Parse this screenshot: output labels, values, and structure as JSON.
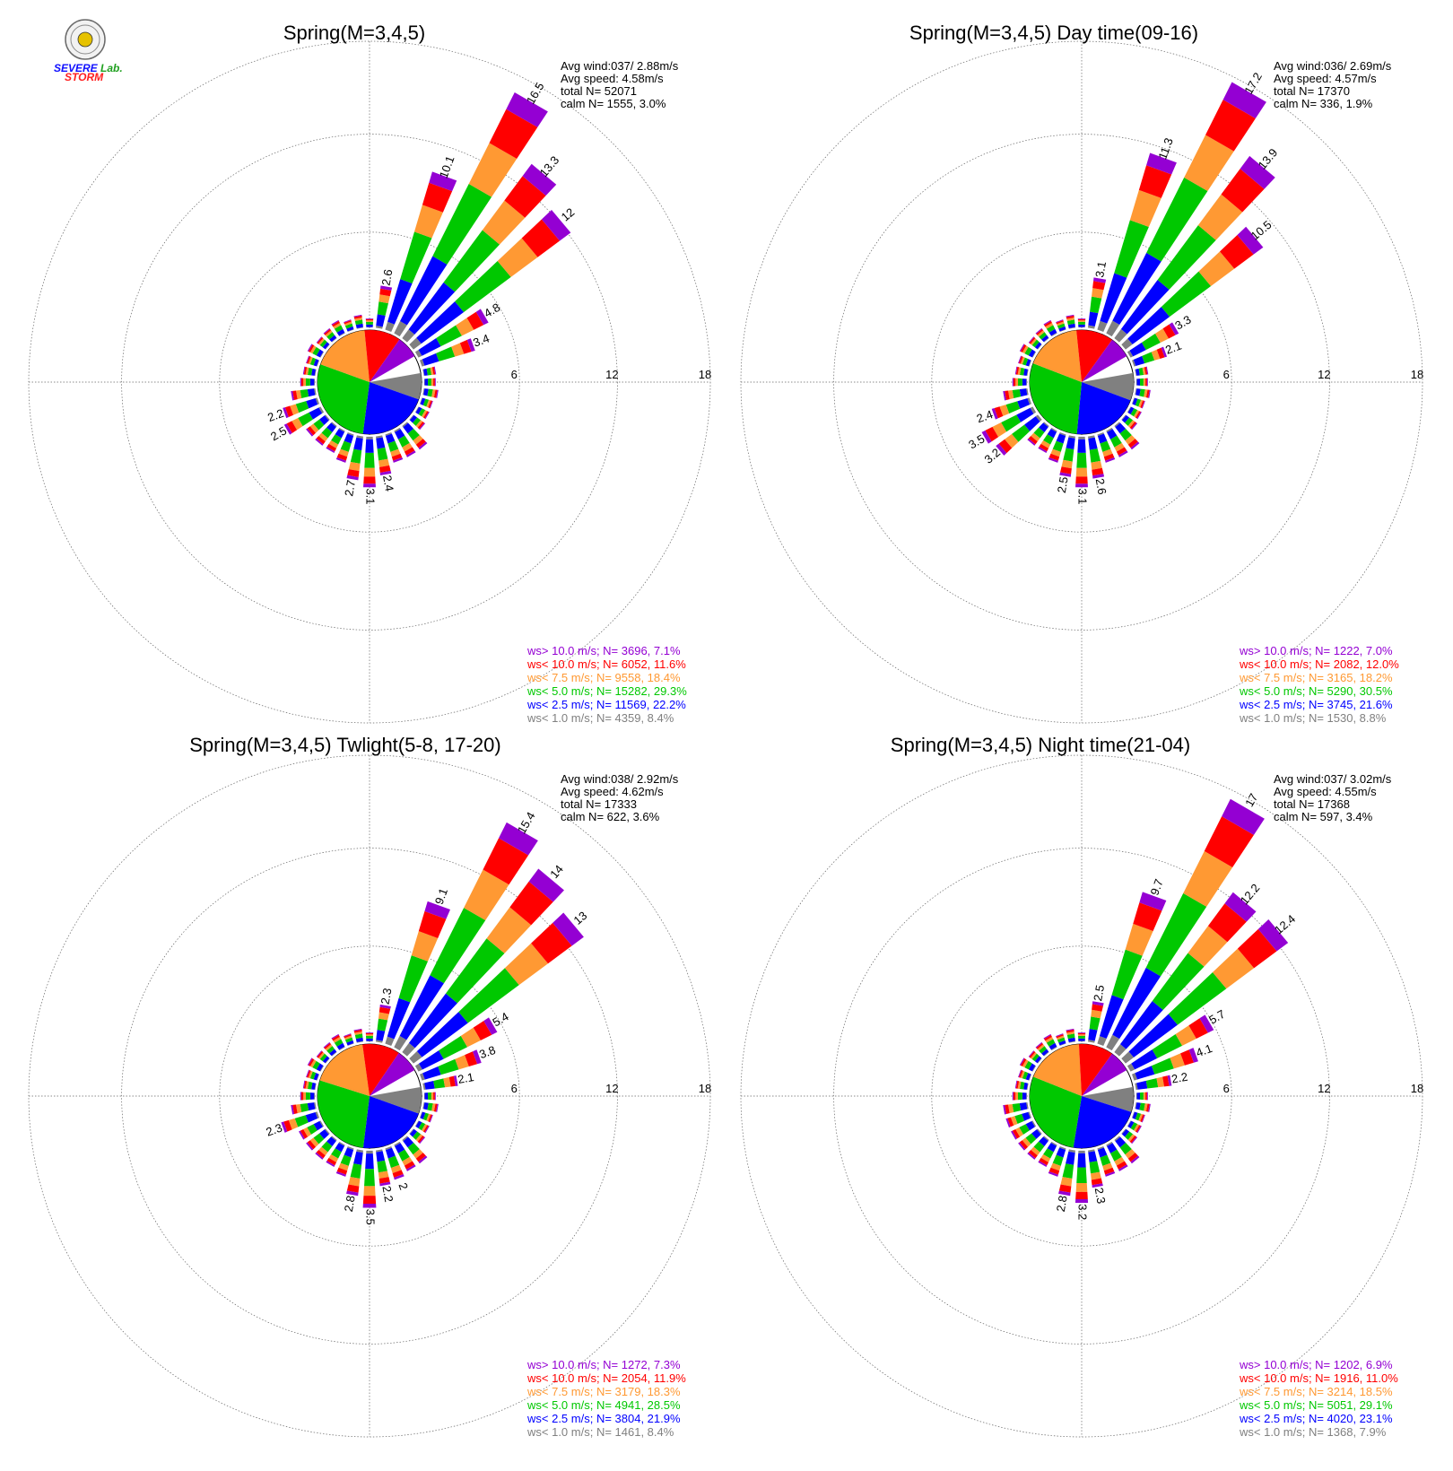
{
  "logo": {
    "text_severe": "SEVERE",
    "text_storm": "STORM",
    "text_lab": "Lab."
  },
  "colors": {
    "gt10": "#9400d3",
    "lt10": "#ff0000",
    "lt7_5": "#ff9933",
    "lt5": "#00c800",
    "lt2_5": "#0000ff",
    "lt1": "#808080",
    "grid": "#666666"
  },
  "chart_data": [
    {
      "type": "windrose",
      "title": "Spring(M=3,4,5)",
      "rings": [
        6,
        12,
        18
      ],
      "stats": {
        "avg_wind": "Avg wind:037/ 2.88m/s",
        "avg_speed": "Avg speed: 4.58m/s",
        "total": "total N=      52071",
        "calm": "calm N=   1555,   3.0%"
      },
      "legend": [
        {
          "text": "ws> 10.0 m/s; N=  3696,  7.1%",
          "color": "#9400d3"
        },
        {
          "text": "ws< 10.0 m/s; N=  6052, 11.6%",
          "color": "#ff0000"
        },
        {
          "text": "ws<  7.5 m/s; N=  9558, 18.4%",
          "color": "#ff9933"
        },
        {
          "text": "ws<  5.0 m/s; N= 15282, 29.3%",
          "color": "#00c800"
        },
        {
          "text": "ws<  2.5 m/s; N= 11569, 22.2%",
          "color": "#0000ff"
        },
        {
          "text": "ws<  1.0 m/s; N=  4359,  8.4%",
          "color": "#808080"
        }
      ],
      "pie": [
        8.4,
        22.2,
        29.3,
        18.4,
        11.6,
        7.1
      ],
      "labeled": [
        {
          "dir": 10,
          "value": 2.6
        },
        {
          "dir": 20,
          "value": 10.1
        },
        {
          "dir": 30,
          "value": 16.5
        },
        {
          "dir": 40,
          "value": 13.3
        },
        {
          "dir": 50,
          "value": 12.0
        },
        {
          "dir": 60,
          "value": 4.8
        },
        {
          "dir": 70,
          "value": 3.4
        },
        {
          "dir": 170,
          "value": 2.4
        },
        {
          "dir": 180,
          "value": 3.1
        },
        {
          "dir": 190,
          "value": 2.7
        },
        {
          "dir": 240,
          "value": 2.5
        },
        {
          "dir": 250,
          "value": 2.2
        }
      ]
    },
    {
      "type": "windrose",
      "title": "Spring(M=3,4,5) Day time(09-16)",
      "rings": [
        6,
        12,
        18
      ],
      "stats": {
        "avg_wind": "Avg wind:036/ 2.69m/s",
        "avg_speed": "Avg speed: 4.57m/s",
        "total": "total N=      17370",
        "calm": "calm N=    336,   1.9%"
      },
      "legend": [
        {
          "text": "ws> 10.0 m/s; N=  1222,  7.0%",
          "color": "#9400d3"
        },
        {
          "text": "ws< 10.0 m/s; N=  2082, 12.0%",
          "color": "#ff0000"
        },
        {
          "text": "ws<  7.5 m/s; N=  3165, 18.2%",
          "color": "#ff9933"
        },
        {
          "text": "ws<  5.0 m/s; N=  5290, 30.5%",
          "color": "#00c800"
        },
        {
          "text": "ws<  2.5 m/s; N=  3745, 21.6%",
          "color": "#0000ff"
        },
        {
          "text": "ws<  1.0 m/s; N=  1530,  8.8%",
          "color": "#808080"
        }
      ],
      "pie": [
        8.8,
        21.6,
        30.5,
        18.2,
        12.0,
        7.0
      ],
      "labeled": [
        {
          "dir": 10,
          "value": 3.1
        },
        {
          "dir": 20,
          "value": 11.3
        },
        {
          "dir": 30,
          "value": 17.2
        },
        {
          "dir": 40,
          "value": 13.9
        },
        {
          "dir": 50,
          "value": 10.5
        },
        {
          "dir": 60,
          "value": 3.3
        },
        {
          "dir": 70,
          "value": 2.1
        },
        {
          "dir": 170,
          "value": 2.6
        },
        {
          "dir": 180,
          "value": 3.1
        },
        {
          "dir": 190,
          "value": 2.5
        },
        {
          "dir": 230,
          "value": 3.2
        },
        {
          "dir": 240,
          "value": 3.5
        },
        {
          "dir": 250,
          "value": 2.4
        }
      ]
    },
    {
      "type": "windrose",
      "title": "Spring(M=3,4,5) Twlight(5-8, 17-20)",
      "rings": [
        6,
        12,
        18
      ],
      "stats": {
        "avg_wind": "Avg wind:038/ 2.92m/s",
        "avg_speed": "Avg speed: 4.62m/s",
        "total": "total N=      17333",
        "calm": "calm N=    622,   3.6%"
      },
      "legend": [
        {
          "text": "ws> 10.0 m/s; N=  1272,  7.3%",
          "color": "#9400d3"
        },
        {
          "text": "ws< 10.0 m/s; N=  2054, 11.9%",
          "color": "#ff0000"
        },
        {
          "text": "ws<  7.5 m/s; N=  3179, 18.3%",
          "color": "#ff9933"
        },
        {
          "text": "ws<  5.0 m/s; N=  4941, 28.5%",
          "color": "#00c800"
        },
        {
          "text": "ws<  2.5 m/s; N=  3804, 21.9%",
          "color": "#0000ff"
        },
        {
          "text": "ws<  1.0 m/s; N=  1461,  8.4%",
          "color": "#808080"
        }
      ],
      "pie": [
        8.4,
        21.9,
        28.5,
        18.3,
        11.9,
        7.3
      ],
      "labeled": [
        {
          "dir": 10,
          "value": 2.3
        },
        {
          "dir": 20,
          "value": 9.1
        },
        {
          "dir": 30,
          "value": 15.4
        },
        {
          "dir": 40,
          "value": 14.0
        },
        {
          "dir": 50,
          "value": 13.0
        },
        {
          "dir": 60,
          "value": 5.4
        },
        {
          "dir": 70,
          "value": 3.8
        },
        {
          "dir": 80,
          "value": 2.1
        },
        {
          "dir": 160,
          "value": 2.0
        },
        {
          "dir": 170,
          "value": 2.2
        },
        {
          "dir": 180,
          "value": 3.5
        },
        {
          "dir": 190,
          "value": 2.8
        },
        {
          "dir": 250,
          "value": 2.3
        }
      ]
    },
    {
      "type": "windrose",
      "title": "Spring(M=3,4,5) Night time(21-04)",
      "rings": [
        6,
        12,
        18
      ],
      "stats": {
        "avg_wind": "Avg wind:037/ 3.02m/s",
        "avg_speed": "Avg speed: 4.55m/s",
        "total": "total N=      17368",
        "calm": "calm N=    597,   3.4%"
      },
      "legend": [
        {
          "text": "ws> 10.0 m/s; N=  1202,  6.9%",
          "color": "#9400d3"
        },
        {
          "text": "ws< 10.0 m/s; N=  1916, 11.0%",
          "color": "#ff0000"
        },
        {
          "text": "ws<  7.5 m/s; N=  3214, 18.5%",
          "color": "#ff9933"
        },
        {
          "text": "ws<  5.0 m/s; N=  5051, 29.1%",
          "color": "#00c800"
        },
        {
          "text": "ws<  2.5 m/s; N=  4020, 23.1%",
          "color": "#0000ff"
        },
        {
          "text": "ws<  1.0 m/s; N=  1368,  7.9%",
          "color": "#808080"
        }
      ],
      "pie": [
        7.9,
        23.1,
        29.1,
        18.5,
        11.0,
        6.9
      ],
      "labeled": [
        {
          "dir": 10,
          "value": 2.5
        },
        {
          "dir": 20,
          "value": 9.7
        },
        {
          "dir": 30,
          "value": 17.0
        },
        {
          "dir": 40,
          "value": 12.2
        },
        {
          "dir": 50,
          "value": 12.4
        },
        {
          "dir": 60,
          "value": 5.7
        },
        {
          "dir": 70,
          "value": 4.1
        },
        {
          "dir": 80,
          "value": 2.2
        },
        {
          "dir": 170,
          "value": 2.3
        },
        {
          "dir": 180,
          "value": 3.2
        },
        {
          "dir": 190,
          "value": 2.8
        }
      ]
    }
  ]
}
